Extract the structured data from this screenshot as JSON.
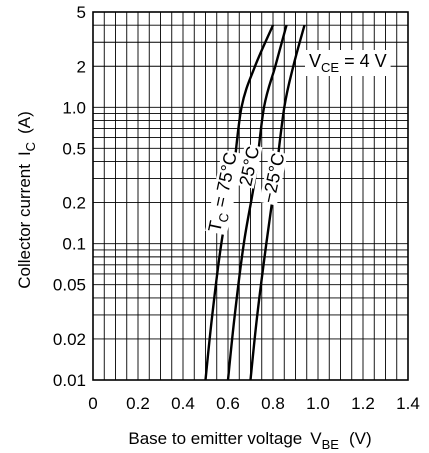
{
  "chart_data": {
    "type": "line",
    "x_scale": "linear",
    "y_scale": "log",
    "xlabel": "Base to emitter voltage",
    "xlabel_sym": "V",
    "xlabel_sub": "BE",
    "xlabel_unit": "(V)",
    "ylabel": "Collector current",
    "ylabel_sym": "I",
    "ylabel_sub": "C",
    "ylabel_unit": "(A)",
    "xlim": [
      0,
      1.4
    ],
    "ylim": [
      0.01,
      5
    ],
    "grid": true,
    "x_ticks": [
      {
        "value": 0,
        "label": "0"
      },
      {
        "value": 0.2,
        "label": "0.2"
      },
      {
        "value": 0.4,
        "label": "0.4"
      },
      {
        "value": 0.6,
        "label": "0.6"
      },
      {
        "value": 0.8,
        "label": "0.8"
      },
      {
        "value": 1.0,
        "label": "1.0"
      },
      {
        "value": 1.2,
        "label": "1.2"
      },
      {
        "value": 1.4,
        "label": "1.4"
      }
    ],
    "y_ticks": [
      {
        "value": 0.01,
        "label": "0.01"
      },
      {
        "value": 0.02,
        "label": "0.02"
      },
      {
        "value": 0.05,
        "label": "0.05"
      },
      {
        "value": 0.1,
        "label": "0.1"
      },
      {
        "value": 0.2,
        "label": "0.2"
      },
      {
        "value": 0.5,
        "label": "0.5"
      },
      {
        "value": 1.0,
        "label": "1.0"
      },
      {
        "value": 2,
        "label": "2"
      },
      {
        "value": 5,
        "label": "5"
      }
    ],
    "annotation": {
      "sym": "V",
      "sub": "CE",
      "rest": " = 4 V"
    },
    "series": [
      {
        "name": "75°C",
        "label_prefix": "T",
        "label_sub": "C",
        "label_rest": " = 75°C",
        "points": [
          [
            0.5,
            0.01
          ],
          [
            0.53,
            0.03
          ],
          [
            0.57,
            0.1
          ],
          [
            0.62,
            0.3
          ],
          [
            0.66,
            1.0
          ],
          [
            0.72,
            2.0
          ],
          [
            0.8,
            4.0
          ]
        ]
      },
      {
        "name": "25°C",
        "label_rest": "25°C",
        "points": [
          [
            0.6,
            0.01
          ],
          [
            0.63,
            0.03
          ],
          [
            0.67,
            0.1
          ],
          [
            0.72,
            0.3
          ],
          [
            0.76,
            1.0
          ],
          [
            0.81,
            2.0
          ],
          [
            0.86,
            4.0
          ]
        ]
      },
      {
        "name": "−25°C",
        "label_rest": "−25°C",
        "points": [
          [
            0.7,
            0.01
          ],
          [
            0.73,
            0.03
          ],
          [
            0.77,
            0.1
          ],
          [
            0.81,
            0.3
          ],
          [
            0.85,
            1.0
          ],
          [
            0.89,
            2.0
          ],
          [
            0.94,
            4.0
          ]
        ]
      }
    ]
  }
}
